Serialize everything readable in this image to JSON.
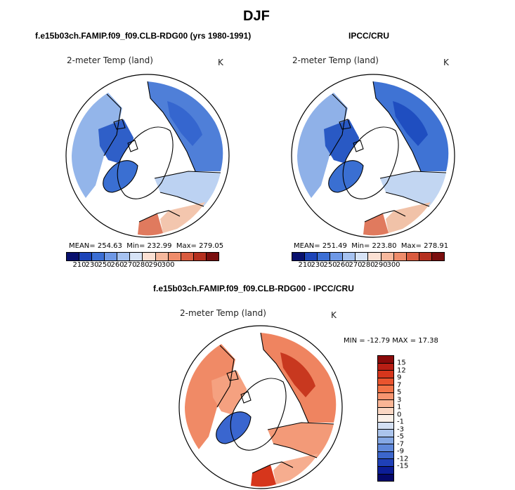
{
  "header": {
    "title": "DJF"
  },
  "panels": [
    {
      "subtitle": "f.e15b03ch.FAMIP.f09_f09.CLB-RDG00 (yrs 1980-1991)",
      "variable": "2-meter Temp (land)",
      "units": "K",
      "stats": {
        "mean_label": "MEAN=",
        "mean": "254.63",
        "min_label": "Min=",
        "min": "232.99",
        "max_label": "Max=",
        "max": "279.05"
      }
    },
    {
      "subtitle": "IPCC/CRU",
      "variable": "2-meter Temp (land)",
      "units": "K",
      "stats": {
        "mean_label": "MEAN=",
        "mean": "251.49",
        "min_label": "Min=",
        "min": "223.80",
        "max_label": "Max=",
        "max": "278.91"
      }
    },
    {
      "subtitle": "f.e15b03ch.FAMIP.f09_f09.CLB-RDG00 - IPCC/CRU",
      "variable": "2-meter Temp (land)",
      "units": "K",
      "minmax": "MIN = -12.79 MAX =  17.38"
    }
  ],
  "abs_colorbar": {
    "labels": [
      "210",
      "230",
      "250",
      "260",
      "270",
      "280",
      "290",
      "300"
    ],
    "colors": [
      "#08106e",
      "#1c44b8",
      "#3b6ed4",
      "#6e98e6",
      "#a6c2f0",
      "#d7e3f6",
      "#fbe0d3",
      "#f6b89d",
      "#ee8c6b",
      "#d95b3f",
      "#b5301f",
      "#7a0e0e"
    ]
  },
  "diff_colorbar": {
    "labels": [
      "15",
      "12",
      "9",
      "7",
      "5",
      "3",
      "1",
      "0",
      "-1",
      "-3",
      "-5",
      "-7",
      "-9",
      "-12",
      "-15"
    ],
    "colors": [
      "#8a0a0a",
      "#b81e14",
      "#d6361c",
      "#e9542e",
      "#f27448",
      "#f79570",
      "#fab595",
      "#fbd7c3",
      "#fbf1e9",
      "#d4e0f3",
      "#abc4ec",
      "#85a8e4",
      "#5f88da",
      "#3c66cc",
      "#1f40b8",
      "#0c1d96",
      "#05086a"
    ]
  },
  "maps": {
    "left": {
      "fills": [
        {
          "name": "north-america",
          "color": "#93b5ea"
        },
        {
          "name": "canada-arctic",
          "color": "#2f5fc8"
        },
        {
          "name": "greenland-void",
          "color": "#ffffff"
        },
        {
          "name": "greenland-inner",
          "color": "#3a6fd2"
        },
        {
          "name": "siberia",
          "color": "#4f7fd8"
        },
        {
          "name": "east-siberia",
          "color": "#3566cf"
        },
        {
          "name": "europe",
          "color": "#bcd2f2"
        },
        {
          "name": "south-band",
          "color": "#f3c6ae"
        },
        {
          "name": "hot-spot",
          "color": "#e07a5e"
        }
      ]
    },
    "center": {
      "fills": [
        {
          "name": "north-america",
          "color": "#8fb1e8"
        },
        {
          "name": "canada-arctic",
          "color": "#2959c4"
        },
        {
          "name": "greenland-void",
          "color": "#ffffff"
        },
        {
          "name": "greenland-inner",
          "color": "#3a6fd2"
        },
        {
          "name": "siberia",
          "color": "#3f73d4"
        },
        {
          "name": "east-siberia",
          "color": "#1f4ec0"
        },
        {
          "name": "europe",
          "color": "#c2d6f2"
        },
        {
          "name": "south-band",
          "color": "#f1c2a8"
        },
        {
          "name": "hot-spot",
          "color": "#e07a5e"
        }
      ]
    },
    "diff": {
      "fills": [
        {
          "name": "north-america",
          "color": "#f08a66"
        },
        {
          "name": "canada-arctic",
          "color": "#f5a180"
        },
        {
          "name": "greenland-void",
          "color": "#ffffff"
        },
        {
          "name": "greenland-inner",
          "color": "#3a66cf"
        },
        {
          "name": "siberia",
          "color": "#ef8460"
        },
        {
          "name": "east-siberia",
          "color": "#c8381f"
        },
        {
          "name": "europe",
          "color": "#f39a78"
        },
        {
          "name": "south-band",
          "color": "#f6ad8f"
        },
        {
          "name": "hot-spot",
          "color": "#d6361c"
        }
      ]
    }
  }
}
